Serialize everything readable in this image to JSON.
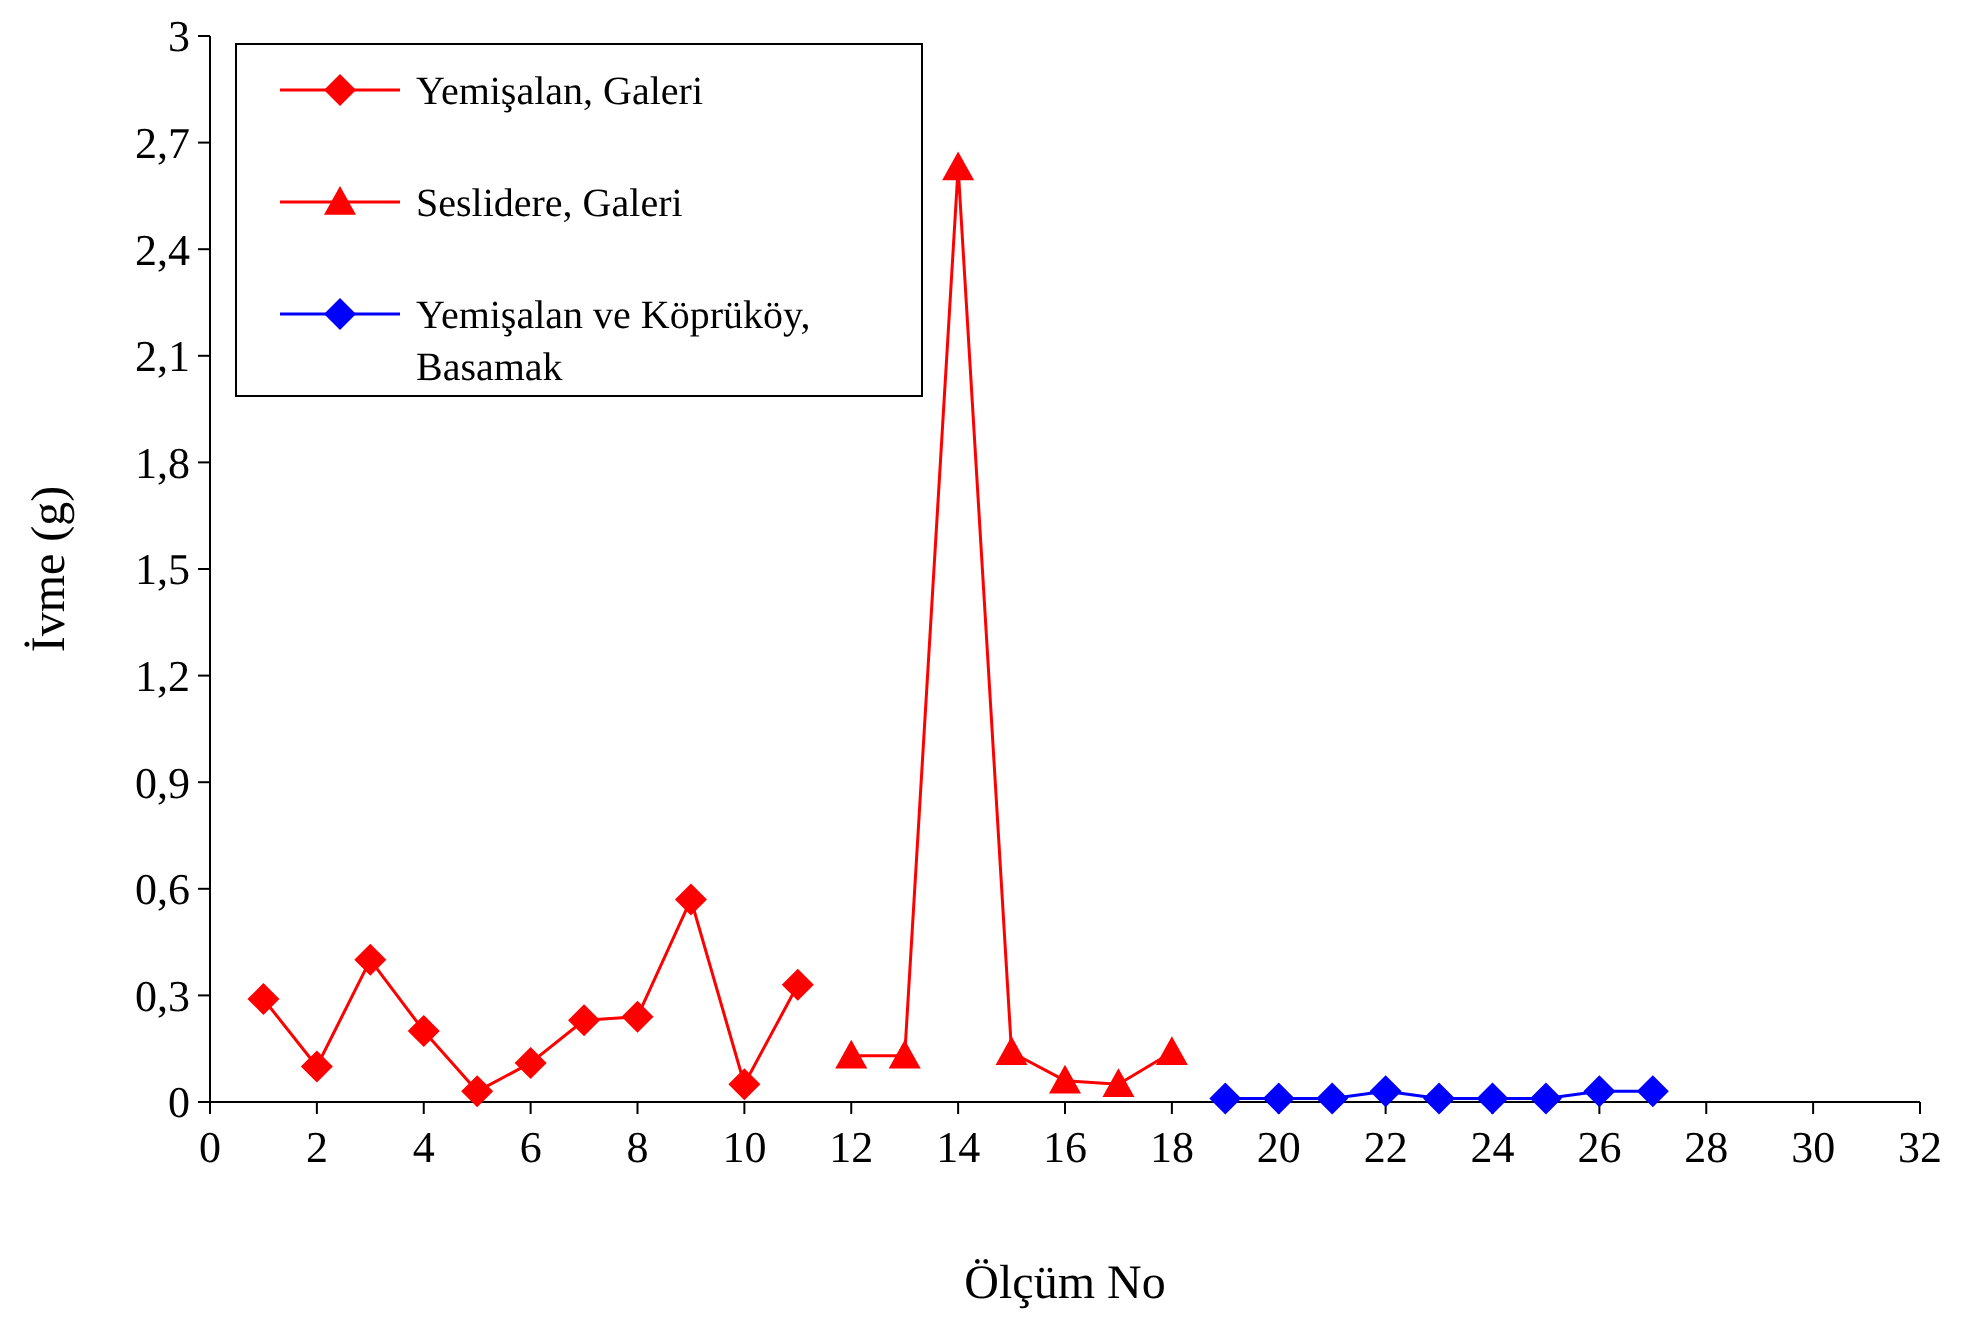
{
  "chart_data": {
    "type": "line",
    "xlabel": "Ölçüm No",
    "ylabel": "İvme (g)",
    "xlim": [
      0,
      32
    ],
    "xticks": [
      0,
      2,
      4,
      6,
      8,
      10,
      12,
      14,
      16,
      18,
      20,
      22,
      24,
      26,
      28,
      30,
      32
    ],
    "ylim": [
      0,
      3
    ],
    "yticks": [
      0,
      {
        "value": 0.3,
        "label": "0,3"
      },
      {
        "value": 0.6,
        "label": "0,6"
      },
      {
        "value": 0.9,
        "label": "0,9"
      },
      {
        "value": 1.2,
        "label": "1,2"
      },
      {
        "value": 1.5,
        "label": "1,5"
      },
      {
        "value": 1.8,
        "label": "1,8"
      },
      {
        "value": 2.1,
        "label": "2,1"
      },
      {
        "value": 2.4,
        "label": "2,4"
      },
      {
        "value": 2.7,
        "label": "2,7"
      },
      3
    ],
    "grid": false,
    "legend": "top left",
    "line_style": "solid",
    "series": [
      {
        "name": "Yemişalan, Galeri",
        "color": "#ff0000",
        "marker": "diamond",
        "x": [
          1,
          2,
          3,
          4,
          5,
          6,
          7,
          8,
          9,
          10,
          11
        ],
        "values": [
          0.29,
          0.1,
          0.4,
          0.2,
          0.03,
          0.11,
          0.23,
          0.24,
          0.57,
          0.05,
          0.33
        ]
      },
      {
        "name": "Seslidere, Galeri",
        "color": "#ff0000",
        "marker": "triangle",
        "x": [
          12,
          13,
          14,
          15,
          16,
          17,
          18
        ],
        "values": [
          0.13,
          0.13,
          2.63,
          0.14,
          0.06,
          0.05,
          0.14
        ]
      },
      {
        "name": "Yemişalan ve Köprüköy, Basamak",
        "color": "#0000ff",
        "marker": "diamond",
        "x": [
          19,
          20,
          21,
          22,
          23,
          24,
          25,
          26,
          27
        ],
        "values": [
          0.01,
          0.01,
          0.01,
          0.03,
          0.01,
          0.01,
          0.01,
          0.03,
          0.03
        ]
      }
    ]
  }
}
